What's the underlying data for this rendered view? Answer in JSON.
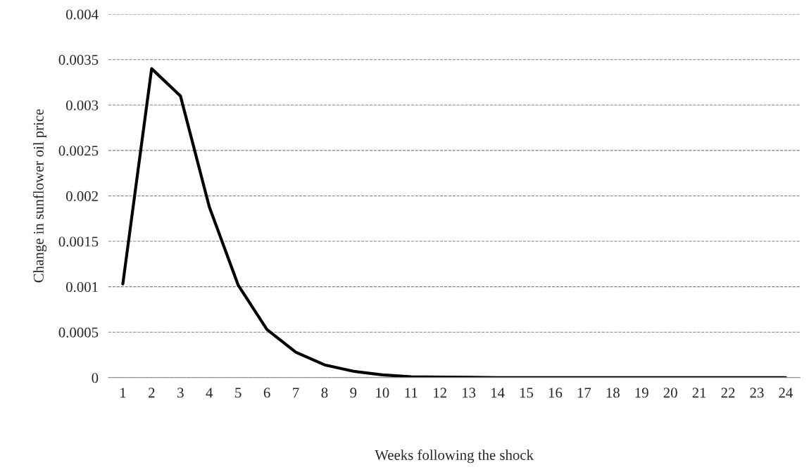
{
  "chart_data": {
    "type": "line",
    "xlabel": "Weeks following the shock",
    "ylabel": "Change in sunflower oil price",
    "categories": [
      "1",
      "2",
      "3",
      "4",
      "5",
      "6",
      "7",
      "8",
      "9",
      "10",
      "11",
      "12",
      "13",
      "14",
      "15",
      "16",
      "17",
      "18",
      "19",
      "20",
      "21",
      "22",
      "23",
      "24"
    ],
    "series": [
      {
        "color": "#000000",
        "values": [
          0.00103,
          0.0034,
          0.0031,
          0.00188,
          0.00102,
          0.00053,
          0.00028,
          0.00014,
          7e-05,
          3e-05,
          1e-05,
          5e-06,
          3e-06,
          0,
          0,
          0,
          0,
          0,
          0,
          0,
          0,
          0,
          0,
          0
        ]
      }
    ],
    "ylim": [
      0,
      0.004
    ],
    "yticks": [
      0,
      0.0005,
      0.001,
      0.0015,
      0.002,
      0.0025,
      0.003,
      0.0035,
      0.004
    ],
    "grid": "y",
    "legend": false,
    "marker": "none",
    "line_style": "solid"
  }
}
